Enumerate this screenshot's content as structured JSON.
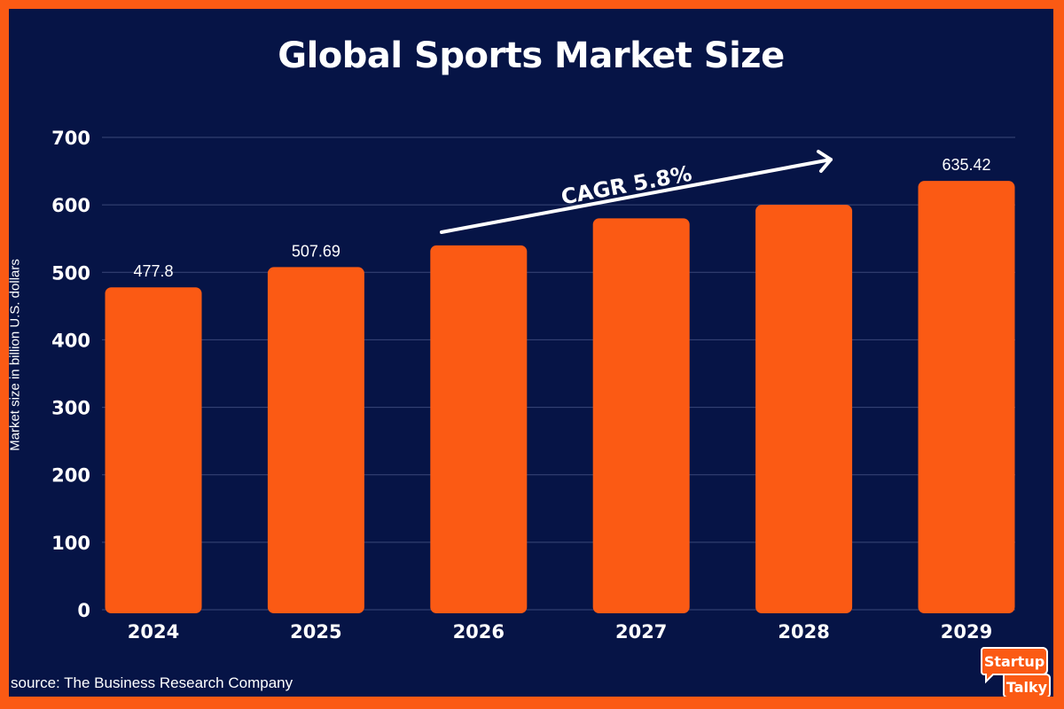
{
  "chart_data": {
    "type": "bar",
    "title": "Global Sports Market Size",
    "ylabel": "Market size in billion U.S. dollars",
    "xlabel": "",
    "categories": [
      "2024",
      "2025",
      "2026",
      "2027",
      "2028",
      "2029"
    ],
    "values": [
      477.8,
      507.69,
      540,
      580,
      600,
      635.42
    ],
    "data_labels": [
      "477.8",
      "507.69",
      "",
      "",
      "",
      "635.42"
    ],
    "ylim": [
      0,
      700
    ],
    "yticks": [
      0,
      100,
      200,
      300,
      400,
      500,
      600,
      700
    ],
    "grid": true,
    "annotation": "CAGR 5.8%",
    "colors": {
      "background": "#061446",
      "border": "#fb5a14",
      "bar": "#fb5a14",
      "grid": "#3a4778",
      "text": "#ffffff"
    }
  },
  "source": "source: The Business Research Company",
  "logo": {
    "line1": "Startup",
    "line2": "Talky"
  }
}
